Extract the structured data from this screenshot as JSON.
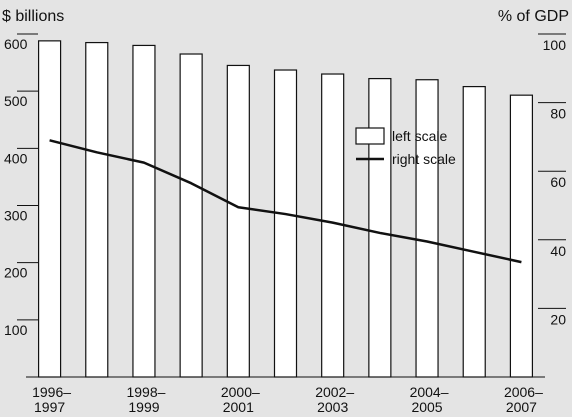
{
  "chart_data": {
    "type": "bar",
    "left_axis_title": "$ billions",
    "right_axis_title": "% of GDP",
    "left_ticks": [
      "100",
      "200",
      "300",
      "400",
      "500",
      "600"
    ],
    "right_ticks": [
      "20",
      "40",
      "60",
      "80",
      "100"
    ],
    "ylim_left": [
      0,
      600
    ],
    "ylim_right": [
      0,
      100
    ],
    "categories": [
      "1996–1997",
      "1997–1998",
      "1998–1999",
      "1999–2000",
      "2000–2001",
      "2001–2002",
      "2002–2003",
      "2003–2004",
      "2004–2005",
      "2005–2006",
      "2006–2007"
    ],
    "x_tick_labels": [
      {
        "index": 0,
        "line1": "1996–",
        "line2": "1997"
      },
      {
        "index": 2,
        "line1": "1998–",
        "line2": "1999"
      },
      {
        "index": 4,
        "line1": "2000–",
        "line2": "2001"
      },
      {
        "index": 6,
        "line1": "2002–",
        "line2": "2003"
      },
      {
        "index": 8,
        "line1": "2004–",
        "line2": "2005"
      },
      {
        "index": 10,
        "line1": "2006–",
        "line2": "2007"
      }
    ],
    "series": [
      {
        "name": "left scale",
        "type": "bar",
        "axis": "left",
        "values": [
          588,
          585,
          580,
          565,
          545,
          537,
          530,
          522,
          520,
          508,
          493
        ]
      },
      {
        "name": "right scale",
        "type": "line",
        "axis": "right",
        "values": [
          69,
          65.5,
          62.5,
          56.5,
          49.5,
          47.5,
          45,
          42,
          39.5,
          36.5,
          33.5
        ]
      }
    ],
    "legend": {
      "position": "top-right",
      "labels": [
        "left scale",
        "right scale"
      ]
    },
    "grid": false,
    "colors": {
      "background": "#e4e4e4",
      "bar_fill": "#ffffff",
      "stroke": "#111111"
    }
  }
}
